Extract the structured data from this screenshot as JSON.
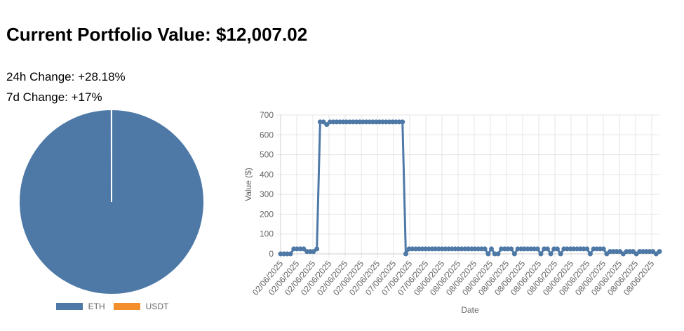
{
  "header": {
    "title": "Current Portfolio Value: $12,007.02",
    "change_24h": "24h Change: +28.18%",
    "change_7d": "7d Change: +17%"
  },
  "colors": {
    "eth": "#4e79a7",
    "usdt": "#f28e2b",
    "grid": "#e5e5e5",
    "axis_text": "#666666"
  },
  "chart_data": [
    {
      "type": "pie",
      "title": "",
      "labels": [
        "ETH",
        "USDT"
      ],
      "values": [
        99.99,
        0.01
      ],
      "colors": [
        "#4e79a7",
        "#f28e2b"
      ],
      "legend_position": "bottom"
    },
    {
      "type": "line",
      "title": "",
      "xlabel": "Date",
      "ylabel": "Value ($)",
      "ylim": [
        0,
        700
      ],
      "yticks": [
        0,
        100,
        200,
        300,
        400,
        500,
        600,
        700
      ],
      "grid": true,
      "x_tick_labels": [
        "02/06/2025",
        "02/06/2025",
        "02/06/2025",
        "02/06/2025",
        "02/06/2025",
        "02/06/2025",
        "02/06/2025",
        "07/06/2025",
        "07/06/2025",
        "07/06/2025",
        "08/06/2025",
        "08/06/2025",
        "08/06/2025",
        "08/06/2025",
        "08/06/2025",
        "08/06/2025",
        "08/06/2025",
        "08/06/2025",
        "08/06/2025",
        "08/06/2025",
        "08/06/2025",
        "08/06/2025",
        "08/06/2025",
        "08/06/2025"
      ],
      "series": [
        {
          "name": "Value ($)",
          "color": "#4e79a7",
          "values": [
            0,
            0,
            0,
            0,
            25,
            25,
            25,
            25,
            12,
            12,
            12,
            25,
            665,
            665,
            652,
            665,
            665,
            665,
            665,
            665,
            665,
            665,
            665,
            665,
            665,
            665,
            665,
            665,
            665,
            665,
            665,
            665,
            665,
            665,
            665,
            665,
            665,
            665,
            0,
            25,
            25,
            25,
            25,
            25,
            25,
            25,
            25,
            25,
            25,
            25,
            25,
            25,
            25,
            25,
            25,
            25,
            25,
            25,
            25,
            25,
            25,
            25,
            25,
            0,
            25,
            0,
            0,
            25,
            25,
            25,
            25,
            0,
            25,
            25,
            25,
            25,
            25,
            25,
            25,
            0,
            25,
            25,
            0,
            25,
            25,
            0,
            25,
            25,
            25,
            25,
            25,
            25,
            25,
            25,
            0,
            25,
            25,
            25,
            25,
            0,
            12,
            12,
            12,
            12,
            0,
            12,
            12,
            12,
            0,
            12,
            12,
            12,
            12,
            12,
            0,
            12
          ]
        }
      ]
    }
  ]
}
